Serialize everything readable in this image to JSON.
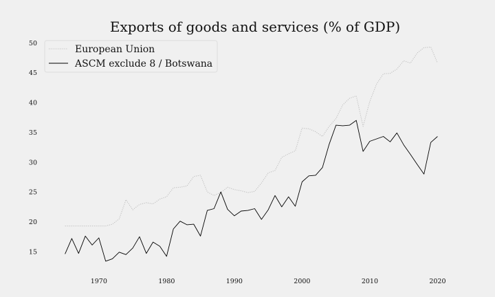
{
  "chart_data": {
    "type": "line",
    "title": "Exports of goods and services (% of GDP)",
    "xlabel": "",
    "ylabel": "",
    "xlim": [
      1962,
      2023
    ],
    "ylim": [
      12,
      50.5
    ],
    "x_ticks": [
      1970,
      1980,
      1990,
      2000,
      2010,
      2020
    ],
    "y_ticks": [
      15,
      20,
      25,
      30,
      35,
      40,
      45,
      50
    ],
    "grid": false,
    "legend_position": "top-left",
    "x": [
      1965,
      1966,
      1967,
      1968,
      1969,
      1970,
      1971,
      1972,
      1973,
      1974,
      1975,
      1976,
      1977,
      1978,
      1979,
      1980,
      1981,
      1982,
      1983,
      1984,
      1985,
      1986,
      1987,
      1988,
      1989,
      1990,
      1991,
      1992,
      1993,
      1994,
      1995,
      1996,
      1997,
      1998,
      1999,
      2000,
      2001,
      2002,
      2003,
      2004,
      2005,
      2006,
      2007,
      2008,
      2009,
      2010,
      2011,
      2012,
      2013,
      2014,
      2015,
      2016,
      2017,
      2018,
      2019,
      2020
    ],
    "series": [
      {
        "name": "European Union",
        "color": "#c0c0c0",
        "dash": "dotted",
        "values": [
          19.3,
          19.3,
          19.3,
          19.3,
          19.3,
          19.3,
          19.3,
          19.6,
          20.5,
          23.7,
          22.0,
          22.9,
          23.2,
          23.0,
          23.8,
          24.2,
          25.7,
          25.8,
          26.0,
          27.6,
          27.8,
          25.0,
          24.4,
          24.9,
          25.8,
          25.4,
          25.2,
          24.9,
          25.1,
          26.5,
          28.2,
          28.6,
          30.8,
          31.4,
          31.9,
          35.7,
          35.6,
          35.1,
          34.3,
          36.0,
          37.3,
          39.6,
          40.7,
          41.1,
          36.0,
          40.2,
          43.1,
          44.8,
          44.9,
          45.6,
          47.0,
          46.6,
          48.3,
          49.2,
          49.3,
          46.6
        ]
      },
      {
        "name": "ASCM exclude 8 / Botswana",
        "color": "#000000",
        "dash": "solid",
        "values": [
          14.6,
          17.2,
          14.7,
          17.6,
          16.1,
          17.3,
          13.4,
          13.8,
          14.9,
          14.5,
          15.6,
          17.5,
          14.7,
          16.6,
          15.9,
          14.2,
          18.8,
          20.1,
          19.5,
          19.6,
          17.6,
          21.9,
          22.2,
          25.0,
          22.1,
          21.0,
          21.8,
          21.9,
          22.2,
          20.4,
          22.0,
          24.4,
          22.5,
          24.2,
          22.6,
          26.7,
          27.7,
          27.8,
          29.1,
          33.0,
          36.2,
          36.1,
          36.2,
          37.0,
          31.8,
          33.5,
          33.9,
          34.3,
          33.4,
          34.9,
          32.9,
          31.3,
          29.6,
          28.0,
          33.3,
          34.3
        ]
      }
    ]
  }
}
